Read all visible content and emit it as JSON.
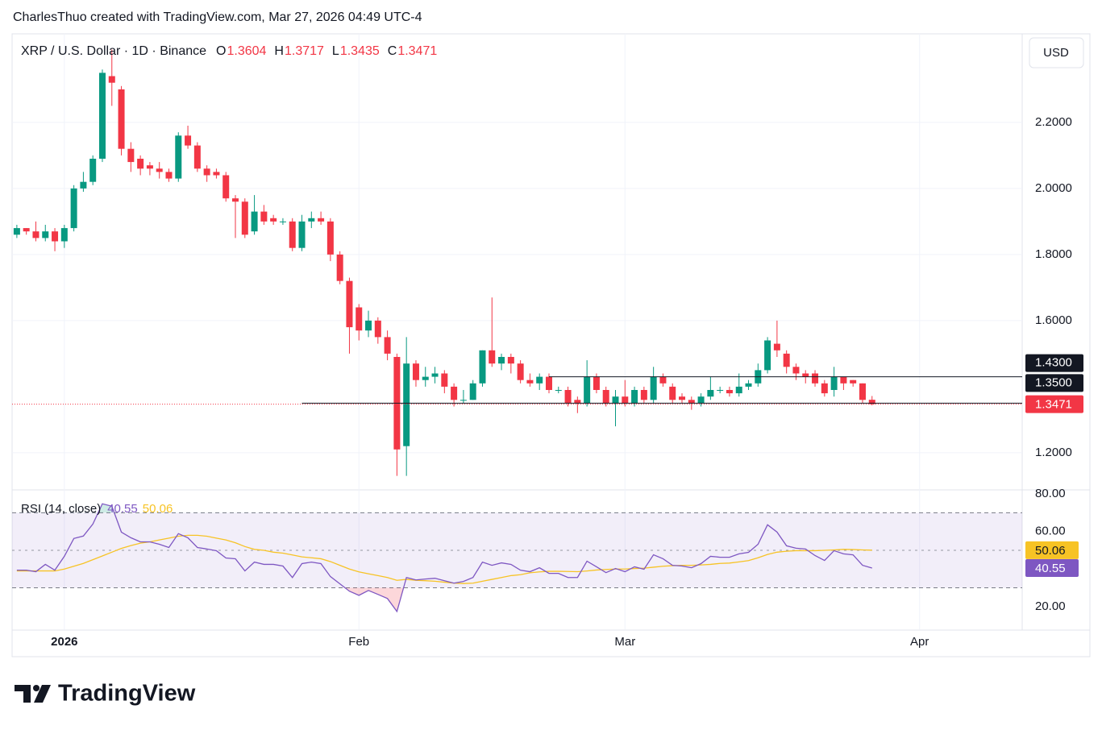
{
  "chart_data": {
    "type": "candlestick",
    "header": "CharlesThuo created with TradingView.com, Mar 27, 2026 04:49 UTC-4",
    "title": "XRP / U.S. Dollar · 1D · Binance",
    "currency": "USD",
    "logo": "TradingView",
    "ohlc_labels": [
      "O",
      "H",
      "L",
      "C"
    ],
    "up_color": "#089981",
    "down_color": "#f23645",
    "open": [
      1.86,
      1.88,
      1.87,
      1.85,
      1.87,
      1.84,
      1.88,
      2.0,
      2.02,
      2.09,
      2.34,
      2.3,
      2.12,
      2.09,
      2.07,
      2.06,
      2.05,
      2.03,
      2.16,
      2.13,
      2.06,
      2.05,
      2.04,
      1.97,
      1.96,
      1.87,
      1.93,
      1.91,
      1.9,
      1.9,
      1.82,
      1.9,
      1.91,
      1.9,
      1.8,
      1.72,
      1.64,
      1.57,
      1.6,
      1.55,
      1.49,
      1.22,
      1.47,
      1.42,
      1.43,
      1.44,
      1.4,
      1.36,
      1.36,
      1.41,
      1.51,
      1.47,
      1.49,
      1.47,
      1.42,
      1.41,
      1.43,
      1.39,
      1.39,
      1.36,
      1.35,
      1.43,
      1.39,
      1.35,
      1.37,
      1.35,
      1.39,
      1.36,
      1.43,
      1.4,
      1.37,
      1.36,
      1.35,
      1.37,
      1.39,
      1.39,
      1.38,
      1.4,
      1.41,
      1.45,
      1.53,
      1.5,
      1.46,
      1.44,
      1.44,
      1.41,
      1.39,
      1.43,
      1.42,
      1.41,
      1.3604
    ],
    "high": [
      1.89,
      1.88,
      1.9,
      1.89,
      1.88,
      1.89,
      2.01,
      2.05,
      2.1,
      2.36,
      2.42,
      2.31,
      2.14,
      2.1,
      2.08,
      2.08,
      2.06,
      2.17,
      2.19,
      2.14,
      2.07,
      2.06,
      2.05,
      1.98,
      1.97,
      1.98,
      1.95,
      1.92,
      1.91,
      1.91,
      1.92,
      1.93,
      1.93,
      1.91,
      1.81,
      1.73,
      1.65,
      1.63,
      1.61,
      1.57,
      1.5,
      1.55,
      1.48,
      1.46,
      1.46,
      1.45,
      1.41,
      1.39,
      1.42,
      1.51,
      1.67,
      1.5,
      1.5,
      1.48,
      1.44,
      1.44,
      1.44,
      1.4,
      1.4,
      1.37,
      1.48,
      1.44,
      1.4,
      1.39,
      1.42,
      1.4,
      1.4,
      1.46,
      1.44,
      1.41,
      1.38,
      1.37,
      1.38,
      1.43,
      1.4,
      1.4,
      1.44,
      1.42,
      1.47,
      1.55,
      1.6,
      1.51,
      1.47,
      1.45,
      1.45,
      1.42,
      1.46,
      1.43,
      1.42,
      1.41,
      1.3717
    ],
    "low": [
      1.85,
      1.86,
      1.84,
      1.84,
      1.81,
      1.82,
      1.87,
      1.99,
      2.01,
      2.08,
      2.25,
      2.1,
      2.05,
      2.04,
      2.04,
      2.03,
      2.02,
      2.02,
      2.12,
      2.05,
      2.02,
      2.03,
      1.96,
      1.85,
      1.85,
      1.86,
      1.89,
      1.89,
      1.89,
      1.81,
      1.81,
      1.88,
      1.89,
      1.78,
      1.71,
      1.5,
      1.54,
      1.55,
      1.53,
      1.48,
      1.13,
      1.13,
      1.4,
      1.4,
      1.41,
      1.38,
      1.34,
      1.35,
      1.36,
      1.4,
      1.46,
      1.45,
      1.44,
      1.41,
      1.4,
      1.39,
      1.38,
      1.38,
      1.34,
      1.32,
      1.34,
      1.38,
      1.34,
      1.28,
      1.34,
      1.34,
      1.35,
      1.35,
      1.4,
      1.35,
      1.35,
      1.33,
      1.34,
      1.36,
      1.38,
      1.37,
      1.37,
      1.39,
      1.4,
      1.44,
      1.49,
      1.44,
      1.42,
      1.41,
      1.4,
      1.37,
      1.37,
      1.39,
      1.4,
      1.35,
      1.3435
    ],
    "close": [
      1.88,
      1.87,
      1.85,
      1.87,
      1.84,
      1.88,
      2.0,
      2.02,
      2.09,
      2.35,
      2.32,
      2.12,
      2.08,
      2.06,
      2.06,
      2.05,
      2.03,
      2.16,
      2.13,
      2.06,
      2.04,
      2.04,
      1.97,
      1.96,
      1.86,
      1.93,
      1.9,
      1.9,
      1.9,
      1.82,
      1.9,
      1.91,
      1.9,
      1.8,
      1.72,
      1.58,
      1.57,
      1.6,
      1.55,
      1.5,
      1.21,
      1.47,
      1.42,
      1.43,
      1.44,
      1.4,
      1.36,
      1.36,
      1.41,
      1.51,
      1.47,
      1.49,
      1.47,
      1.42,
      1.41,
      1.43,
      1.39,
      1.39,
      1.35,
      1.35,
      1.43,
      1.39,
      1.35,
      1.37,
      1.35,
      1.39,
      1.36,
      1.43,
      1.41,
      1.36,
      1.36,
      1.35,
      1.37,
      1.39,
      1.39,
      1.38,
      1.4,
      1.41,
      1.45,
      1.54,
      1.51,
      1.46,
      1.44,
      1.43,
      1.41,
      1.38,
      1.43,
      1.41,
      1.41,
      1.36,
      1.3471
    ],
    "xlim": [
      -0.5,
      105.8
    ],
    "xticks": [
      {
        "value": 5,
        "label": "2026"
      },
      {
        "value": 36,
        "label": "Feb"
      },
      {
        "value": 64,
        "label": "Mar"
      },
      {
        "value": 95,
        "label": "Apr"
      }
    ],
    "ylim": [
      1.09,
      2.468
    ],
    "yticks": [
      {
        "value": 1.2,
        "label": "1.2000"
      },
      {
        "value": 1.6,
        "label": "1.6000"
      },
      {
        "value": 1.8,
        "label": "1.8000"
      },
      {
        "value": 2.0,
        "label": "2.0000"
      },
      {
        "value": 2.2,
        "label": "2.2000"
      }
    ],
    "levels": [
      {
        "value": 1.43,
        "label": "1.4300"
      },
      {
        "value": 1.35,
        "label": "1.3500"
      }
    ],
    "grid": true,
    "rsi": {
      "title": "RSI (14, close)",
      "ylim": [
        7.9,
        82.2
      ],
      "yticks": [
        {
          "value": 20,
          "label": "20.00"
        },
        {
          "value": 60,
          "label": "60.00"
        },
        {
          "value": 80,
          "label": "80.00"
        }
      ],
      "bands": [
        30,
        70
      ],
      "midline": 50,
      "series": [
        {
          "color": "#7e57c2",
          "values": [
            39.4,
            39.4,
            38.6,
            42.5,
            39.4,
            46.8,
            56.3,
            57.6,
            64,
            74.8,
            73.5,
            59.7,
            56.7,
            54.5,
            54.5,
            53.2,
            51.5,
            58.9,
            56.7,
            51.5,
            50.7,
            49.8,
            45.9,
            45.5,
            39,
            43.7,
            42.5,
            42.5,
            41.6,
            35.5,
            42.9,
            43.7,
            42.9,
            36,
            32.1,
            28.2,
            26,
            28.6,
            26.5,
            24.3,
            17.4,
            35.5,
            34.2,
            34.7,
            35.1,
            33.8,
            32.5,
            33.4,
            35.5,
            43.7,
            42,
            43.3,
            42.5,
            39.4,
            38.6,
            40.7,
            37.7,
            37.7,
            35.5,
            35.5,
            44.2,
            41.2,
            38.1,
            40.3,
            38.6,
            41.2,
            39.9,
            47.6,
            45.5,
            42,
            41.6,
            40.7,
            42.9,
            46.8,
            46.3,
            46.3,
            48.1,
            48.9,
            53.2,
            63.6,
            59.7,
            52.4,
            51.1,
            50.7,
            47.2,
            44.6,
            49.8,
            48.1,
            47.6,
            42,
            40.55
          ]
        },
        {
          "color": "#f7c325",
          "values": [
            39,
            39,
            39,
            39,
            39,
            40,
            41.5,
            43,
            45,
            47,
            49,
            51,
            52.5,
            53.8,
            54.5,
            55.5,
            56.5,
            57.5,
            58,
            58,
            57.5,
            56.5,
            55.5,
            54,
            52,
            50.5,
            50,
            49,
            48.5,
            47.5,
            46.5,
            46,
            45.5,
            44,
            42,
            40,
            38.5,
            37.5,
            36.5,
            35.5,
            34,
            34.5,
            34,
            33.8,
            33.5,
            33,
            32.5,
            32.3,
            32.5,
            33.5,
            34.5,
            35.5,
            36.5,
            37,
            38,
            38.5,
            38.8,
            38.8,
            38.7,
            38.6,
            39,
            39.5,
            39.8,
            40,
            40,
            40.3,
            40.5,
            41,
            41.5,
            41.8,
            42,
            42,
            42.2,
            42.5,
            43,
            43.2,
            43.8,
            44.5,
            46,
            47.8,
            49,
            49.5,
            49.8,
            49.8,
            49.8,
            50,
            50.2,
            50.5,
            50.4,
            50.2,
            50.06
          ]
        }
      ]
    }
  }
}
